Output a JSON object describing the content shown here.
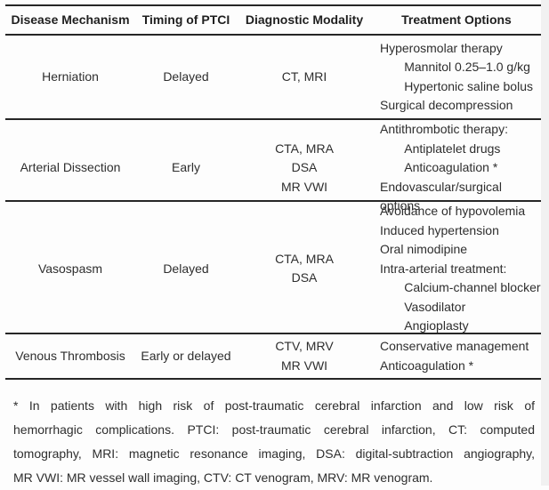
{
  "page": {
    "background": "#fdfdfd",
    "edge_color": "#f1f1f1",
    "rule_color": "#262626",
    "text_color": "#2e2e2e"
  },
  "table": {
    "headers": [
      "Disease Mechanism",
      "Timing of PTCI",
      "Diagnostic Modality",
      "Treatment Options"
    ],
    "rows": [
      {
        "mechanism": "Herniation",
        "timing": "Delayed",
        "modality": "CT, MRI",
        "treatment": "Hyperosmolar therapy\n       Mannitol 0.25–1.0 g/kg\n       Hypertonic saline bolus\nSurgical decompression"
      },
      {
        "mechanism": "Arterial Dissection",
        "timing": "Early",
        "modality": "CTA, MRA\nDSA\nMR VWI",
        "treatment": "Antithrombotic therapy:\n       Antiplatelet drugs\n       Anticoagulation *\nEndovascular/surgical options"
      },
      {
        "mechanism": "Vasospasm",
        "timing": "Delayed",
        "modality": "CTA, MRA\nDSA",
        "treatment": "Avoidance of hypovolemia\nInduced hypertension\nOral nimodipine\nIntra-arterial treatment:\n       Calcium-channel blocker\n       Vasodilator\n       Angioplasty"
      },
      {
        "mechanism": "Venous Thrombosis",
        "timing": "Early or delayed",
        "modality": "CTV, MRV\nMR VWI",
        "treatment": "Conservative management\nAnticoagulation *"
      }
    ]
  },
  "footnote": {
    "lines": [
      "* In patients with high risk of post-traumatic cerebral infarction and low risk of",
      "hemorrhagic complications. PTCI: post-traumatic cerebral infarction, CT: computed",
      "tomography, MRI: magnetic resonance imaging, DSA: digital-subtraction angiography,",
      "MR VWI: MR vessel wall imaging, CTV: CT venogram, MRV: MR venogram."
    ]
  }
}
